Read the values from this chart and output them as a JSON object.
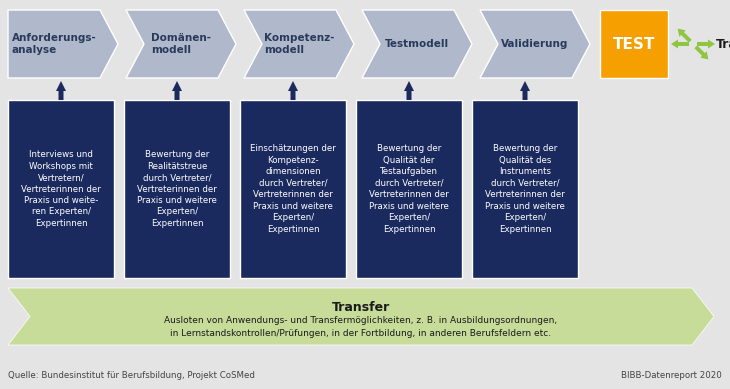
{
  "bg_color": "#e4e4e4",
  "chevron_color": "#b0b8cc",
  "dark_blue": "#1a2a5e",
  "orange": "#f5a000",
  "green_fill": "#c8dc9a",
  "white": "#ffffff",
  "dark_text": "#2a2a2a",
  "arrow_up_color": "#1a2a5e",
  "top_labels": [
    "Anforderungs-\nanalyse",
    "Domänen-\nmodell",
    "Kompetenz-\nmodell",
    "Testmodell",
    "Validierung"
  ],
  "box_texts": [
    "Interviews und\nWorkshops mit\nVertretern/\nVertreterinnen der\nPraxis und weite-\nren Experten/\nExpertinnen",
    "Bewertung der\nRealitätstreue\ndurch Vertreter/\nVertreterinnen der\nPraxis und weitere\nExperten/\nExpertinnen",
    "Einschätzungen der\nKompetenz-\ndimensionen\ndurch Vertreter/\nVertreterinnen der\nPraxis und weitere\nExperten/\nExpertinnen",
    "Bewertung der\nQualität der\nTestaufgaben\ndurch Vertreter/\nVertreterinnen der\nPraxis und weitere\nExperten/\nExpertinnen",
    "Bewertung der\nQualität des\nInstruments\ndurch Vertreter/\nVertreterinnen der\nPraxis und weitere\nExperten/\nExpertinnen"
  ],
  "transfer_title": "Transfer",
  "transfer_text1": "Ausloten von Anwendungs- und Transfermöglichkeiten, z. B. in Ausbildungsordnungen,",
  "transfer_text2": "in Lernstandskontrollen/Prüfungen, in der Fortbildung, in anderen Berufsfeldern etc.",
  "source_text": "Quelle: Bundesinstitut für Berufsbildung, Projekt CoSMed",
  "report_text": "BIBB-Datenreport 2020",
  "test_label": "TEST"
}
